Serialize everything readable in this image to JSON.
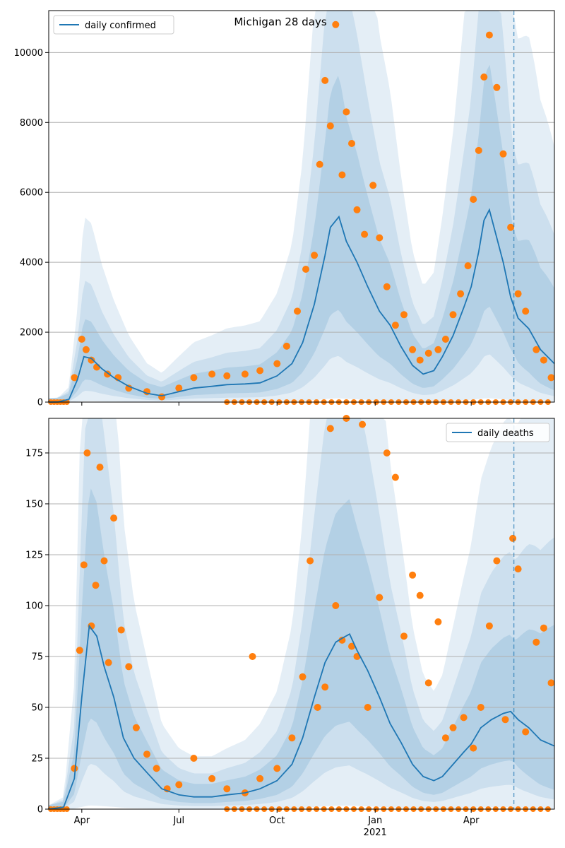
{
  "chart_data": [
    {
      "type": "line",
      "title": "Michigan 28 days",
      "legend": {
        "label": "daily confirmed",
        "position": "top-left"
      },
      "xlabel": "",
      "ylabel": "",
      "xlim": [
        "2020-03-01",
        "2021-06-18"
      ],
      "ylim": [
        0,
        11200
      ],
      "yticks": [
        0,
        2000,
        4000,
        6000,
        8000,
        10000
      ],
      "grid": "horizontal",
      "forecast_start": "2021-05-11",
      "colors": {
        "line": "#1f77b4",
        "points": "#ff7f0e",
        "band": "#1f77b4"
      },
      "series": [
        {
          "name": "daily confirmed",
          "x": [
            "2020-03-01",
            "2020-03-10",
            "2020-03-20",
            "2020-03-28",
            "2020-04-03",
            "2020-04-10",
            "2020-04-20",
            "2020-05-01",
            "2020-05-15",
            "2020-06-01",
            "2020-06-15",
            "2020-07-01",
            "2020-07-15",
            "2020-08-01",
            "2020-08-15",
            "2020-09-01",
            "2020-09-15",
            "2020-10-01",
            "2020-10-15",
            "2020-10-25",
            "2020-11-05",
            "2020-11-15",
            "2020-11-20",
            "2020-11-28",
            "2020-12-05",
            "2020-12-15",
            "2020-12-25",
            "2021-01-05",
            "2021-01-15",
            "2021-01-25",
            "2021-02-05",
            "2021-02-15",
            "2021-02-25",
            "2021-03-05",
            "2021-03-15",
            "2021-03-25",
            "2021-04-01",
            "2021-04-08",
            "2021-04-13",
            "2021-04-18",
            "2021-04-25",
            "2021-05-01",
            "2021-05-08",
            "2021-05-15",
            "2021-05-25",
            "2021-06-05",
            "2021-06-18"
          ],
          "values": [
            0,
            5,
            80,
            650,
            1300,
            1250,
            950,
            700,
            450,
            250,
            180,
            300,
            400,
            450,
            500,
            520,
            550,
            750,
            1100,
            1700,
            2800,
            4200,
            5000,
            5300,
            4600,
            4000,
            3300,
            2600,
            2200,
            1600,
            1050,
            800,
            900,
            1300,
            1900,
            2700,
            3300,
            4300,
            5200,
            5500,
            4700,
            4000,
            3000,
            2400,
            2100,
            1500,
            1100
          ]
        }
      ],
      "observed_points": {
        "x": [
          "2020-03-25",
          "2020-04-01",
          "2020-04-05",
          "2020-04-10",
          "2020-04-15",
          "2020-04-25",
          "2020-05-05",
          "2020-05-15",
          "2020-06-01",
          "2020-06-15",
          "2020-07-01",
          "2020-07-15",
          "2020-08-01",
          "2020-08-15",
          "2020-09-01",
          "2020-09-15",
          "2020-10-01",
          "2020-10-10",
          "2020-10-20",
          "2020-10-28",
          "2020-11-05",
          "2020-11-10",
          "2020-11-15",
          "2020-11-20",
          "2020-11-25",
          "2020-12-01",
          "2020-12-05",
          "2020-12-10",
          "2020-12-15",
          "2020-12-22",
          "2020-12-30",
          "2021-01-05",
          "2021-01-12",
          "2021-01-20",
          "2021-01-28",
          "2021-02-05",
          "2021-02-12",
          "2021-02-20",
          "2021-03-01",
          "2021-03-08",
          "2021-03-15",
          "2021-03-22",
          "2021-03-29",
          "2021-04-03",
          "2021-04-08",
          "2021-04-13",
          "2021-04-18",
          "2021-04-25",
          "2021-05-01",
          "2021-05-08",
          "2021-05-15",
          "2021-05-22",
          "2021-06-01",
          "2021-06-08",
          "2021-06-15"
        ],
        "values": [
          700,
          1800,
          1500,
          1200,
          1000,
          800,
          700,
          400,
          300,
          150,
          400,
          700,
          800,
          750,
          800,
          900,
          1100,
          1600,
          2600,
          3800,
          4200,
          6800,
          9200,
          7900,
          10800,
          6500,
          8300,
          7400,
          5500,
          4800,
          6200,
          4700,
          3300,
          2200,
          2500,
          1500,
          1200,
          1400,
          1500,
          1800,
          2500,
          3100,
          3900,
          5800,
          7200,
          9300,
          10500,
          9000,
          7100,
          5000,
          3100,
          2600,
          1500,
          1200,
          700
        ]
      },
      "zero_reports_from": "2020-08-15"
    },
    {
      "type": "line",
      "title": "",
      "legend": {
        "label": "daily deaths",
        "position": "top-right"
      },
      "xlabel": "",
      "ylabel": "",
      "xlim": [
        "2020-03-01",
        "2021-06-18"
      ],
      "ylim": [
        0,
        192
      ],
      "yticks": [
        0,
        25,
        50,
        75,
        100,
        125,
        150,
        175
      ],
      "xticks": [
        "Apr",
        "Jul",
        "Oct",
        "Jan",
        "Apr"
      ],
      "xtick_dates": [
        "2020-04-01",
        "2020-07-01",
        "2020-10-01",
        "2021-01-01",
        "2021-04-01"
      ],
      "year_label": "2021",
      "grid": "horizontal",
      "forecast_start": "2021-05-11",
      "colors": {
        "line": "#1f77b4",
        "points": "#ff7f0e",
        "band": "#1f77b4"
      },
      "series": [
        {
          "name": "daily deaths",
          "x": [
            "2020-03-01",
            "2020-03-15",
            "2020-03-25",
            "2020-04-01",
            "2020-04-08",
            "2020-04-15",
            "2020-04-22",
            "2020-05-01",
            "2020-05-10",
            "2020-05-20",
            "2020-06-01",
            "2020-06-15",
            "2020-07-01",
            "2020-07-15",
            "2020-08-01",
            "2020-08-15",
            "2020-09-01",
            "2020-09-15",
            "2020-10-01",
            "2020-10-15",
            "2020-10-25",
            "2020-11-05",
            "2020-11-15",
            "2020-11-25",
            "2020-12-01",
            "2020-12-08",
            "2020-12-15",
            "2020-12-25",
            "2021-01-05",
            "2021-01-15",
            "2021-01-25",
            "2021-02-05",
            "2021-02-15",
            "2021-02-25",
            "2021-03-05",
            "2021-03-15",
            "2021-03-25",
            "2021-04-01",
            "2021-04-10",
            "2021-04-20",
            "2021-05-01",
            "2021-05-08",
            "2021-05-15",
            "2021-05-25",
            "2021-06-05",
            "2021-06-18"
          ],
          "values": [
            0,
            1,
            15,
            55,
            90,
            85,
            70,
            55,
            35,
            25,
            18,
            10,
            7,
            6,
            6,
            7,
            8,
            10,
            14,
            22,
            35,
            55,
            72,
            82,
            84,
            86,
            78,
            68,
            55,
            42,
            33,
            22,
            16,
            14,
            16,
            22,
            28,
            32,
            40,
            44,
            47,
            48,
            44,
            40,
            34,
            31
          ]
        }
      ],
      "observed_points": {
        "x": [
          "2020-03-25",
          "2020-03-30",
          "2020-04-03",
          "2020-04-06",
          "2020-04-10",
          "2020-04-14",
          "2020-04-18",
          "2020-04-22",
          "2020-04-26",
          "2020-05-01",
          "2020-05-08",
          "2020-05-15",
          "2020-05-22",
          "2020-06-01",
          "2020-06-10",
          "2020-06-20",
          "2020-07-01",
          "2020-07-15",
          "2020-08-01",
          "2020-08-15",
          "2020-09-01",
          "2020-09-08",
          "2020-09-15",
          "2020-10-01",
          "2020-10-15",
          "2020-10-25",
          "2020-11-01",
          "2020-11-08",
          "2020-11-15",
          "2020-11-20",
          "2020-11-25",
          "2020-12-01",
          "2020-12-05",
          "2020-12-10",
          "2020-12-15",
          "2020-12-20",
          "2020-12-25",
          "2021-01-05",
          "2021-01-12",
          "2021-01-20",
          "2021-01-28",
          "2021-02-05",
          "2021-02-12",
          "2021-02-20",
          "2021-03-01",
          "2021-03-08",
          "2021-03-15",
          "2021-03-25",
          "2021-04-03",
          "2021-04-10",
          "2021-04-18",
          "2021-04-25",
          "2021-05-03",
          "2021-05-10",
          "2021-05-15",
          "2021-05-22",
          "2021-06-01",
          "2021-06-08",
          "2021-06-15"
        ],
        "values": [
          20,
          78,
          120,
          175,
          90,
          110,
          168,
          122,
          72,
          143,
          88,
          70,
          40,
          27,
          20,
          10,
          12,
          25,
          15,
          10,
          8,
          75,
          15,
          20,
          35,
          65,
          122,
          50,
          60,
          187,
          100,
          83,
          193,
          80,
          75,
          189,
          50,
          104,
          175,
          163,
          85,
          115,
          105,
          62,
          92,
          35,
          40,
          45,
          30,
          50,
          90,
          122,
          44,
          133,
          118,
          38,
          82,
          89,
          62
        ]
      },
      "zero_reports_from": "2020-08-15"
    }
  ]
}
